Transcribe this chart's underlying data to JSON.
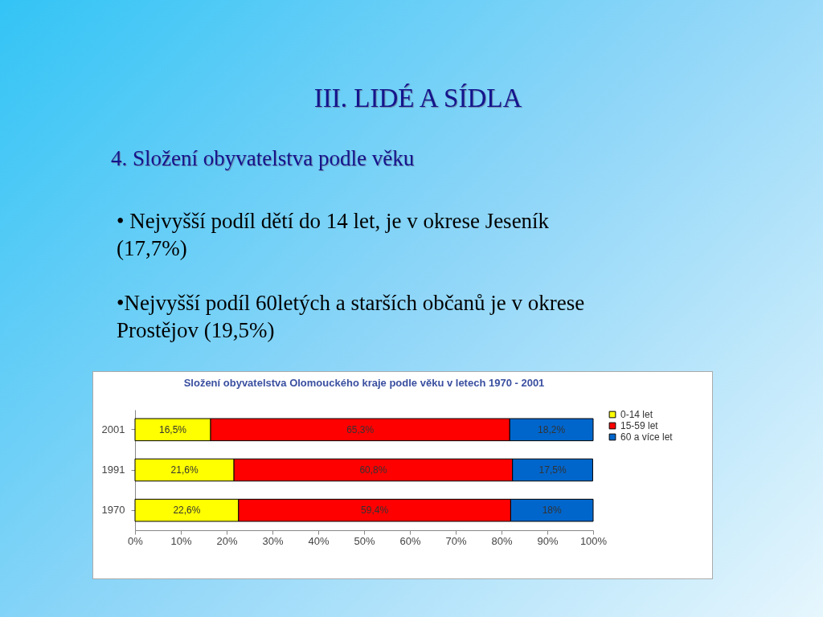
{
  "chart_data": {
    "type": "bar",
    "orientation": "horizontal",
    "stacked": true,
    "title": "Složení obyvatelstva Olomouckého kraje podle věku v letech 1970 - 2001",
    "annotations": [
      "III. LIDÉ A SÍDLA",
      "4. Složení obyvatelstva podle věku",
      "• Nejvyšší podíl dětí do 14 let, je v okrese Jeseník (17,7%)",
      "•Nejvyšší podíl 60letých a starších občanů je v okrese Prostějov (19,5%)"
    ],
    "categories": [
      "2001",
      "1991",
      "1970"
    ],
    "series": [
      {
        "name": "0-14 let",
        "color": "#ffff00",
        "values": [
          16.5,
          21.6,
          22.6
        ],
        "value_labels": [
          "16,5%",
          "21,6%",
          "22,6%"
        ]
      },
      {
        "name": "15-59 let",
        "color": "#ff0000",
        "values": [
          65.3,
          60.8,
          59.4
        ],
        "value_labels": [
          "65,3%",
          "60,8%",
          "59,4%"
        ]
      },
      {
        "name": "60 a více let",
        "color": "#0066cc",
        "values": [
          18.2,
          17.5,
          18
        ],
        "value_labels": [
          "18,2%",
          "17,5%",
          "18%"
        ]
      }
    ],
    "xlim": [
      0,
      100
    ],
    "xticks": [
      {
        "value": 0,
        "label": "0%"
      },
      {
        "value": 10,
        "label": "10%"
      },
      {
        "value": 20,
        "label": "20%"
      },
      {
        "value": 30,
        "label": "30%"
      },
      {
        "value": 40,
        "label": "40%"
      },
      {
        "value": 50,
        "label": "50%"
      },
      {
        "value": 60,
        "label": "60%"
      },
      {
        "value": 70,
        "label": "70%"
      },
      {
        "value": 80,
        "label": "80%"
      },
      {
        "value": 90,
        "label": "90%"
      },
      {
        "value": 100,
        "label": "100%"
      }
    ],
    "grid": false,
    "legend": "right"
  }
}
